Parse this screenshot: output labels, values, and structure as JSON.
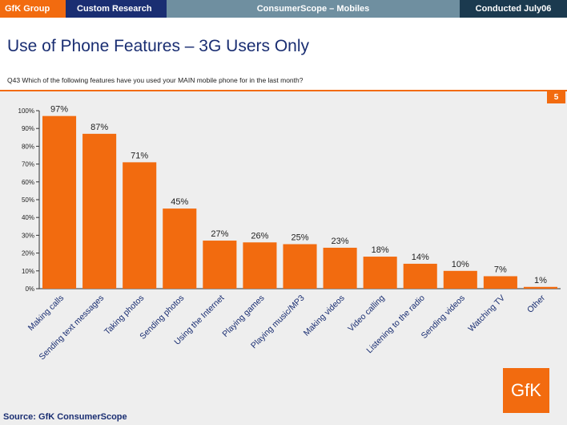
{
  "header": {
    "brand": "GfK Group",
    "department": "Custom Research",
    "product": "ConsumerScope – Mobiles",
    "conducted": "Conducted July06"
  },
  "title": "Use of Phone Features – 3G Users Only",
  "question": "Q43 Which of the following features have you used your MAIN mobile phone for in the last month?",
  "page_number": "5",
  "logo_text": "GfK",
  "source": "Source: GfK ConsumerScope",
  "colors": {
    "brand_orange": "#f26b0f",
    "navy": "#1a2e72",
    "bar": "#f26b0f"
  },
  "chart_data": {
    "type": "bar",
    "categories": [
      "Making calls",
      "Sending text messages",
      "Taking photos",
      "Sending photos",
      "Using the Internet",
      "Playing games",
      "Playing music/MP3",
      "Making videos",
      "Video calling",
      "Listening to the radio",
      "Sending videos",
      "Watching TV",
      "Other"
    ],
    "values": [
      97,
      87,
      71,
      45,
      27,
      26,
      25,
      23,
      18,
      14,
      10,
      7,
      1
    ],
    "value_labels": [
      "97%",
      "87%",
      "71%",
      "45%",
      "27%",
      "26%",
      "25%",
      "23%",
      "18%",
      "14%",
      "10%",
      "7%",
      "1%"
    ],
    "y_ticks": [
      "0%",
      "10%",
      "20%",
      "30%",
      "40%",
      "50%",
      "60%",
      "70%",
      "80%",
      "90%",
      "100%"
    ],
    "ylim": [
      0,
      100
    ],
    "grid": false
  }
}
